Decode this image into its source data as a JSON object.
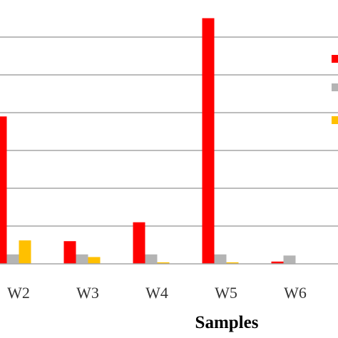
{
  "chart_data": {
    "type": "bar",
    "title": "",
    "xlabel": "Samples",
    "ylabel": "",
    "categories": [
      "W2",
      "W3",
      "W4",
      "W5",
      "W6"
    ],
    "series": [
      {
        "color": "#ff0000",
        "values": [
          3.9,
          0.6,
          1.1,
          6.5,
          0.06
        ]
      },
      {
        "color": "#b4b4b4",
        "values": [
          0.25,
          0.25,
          0.25,
          0.25,
          0.22
        ]
      },
      {
        "color": "#ffc000",
        "values": [
          0.62,
          0.18,
          0.04,
          0.04,
          0.0
        ]
      }
    ],
    "ylim": [
      0,
      7
    ],
    "grid": true,
    "legend": "right"
  }
}
